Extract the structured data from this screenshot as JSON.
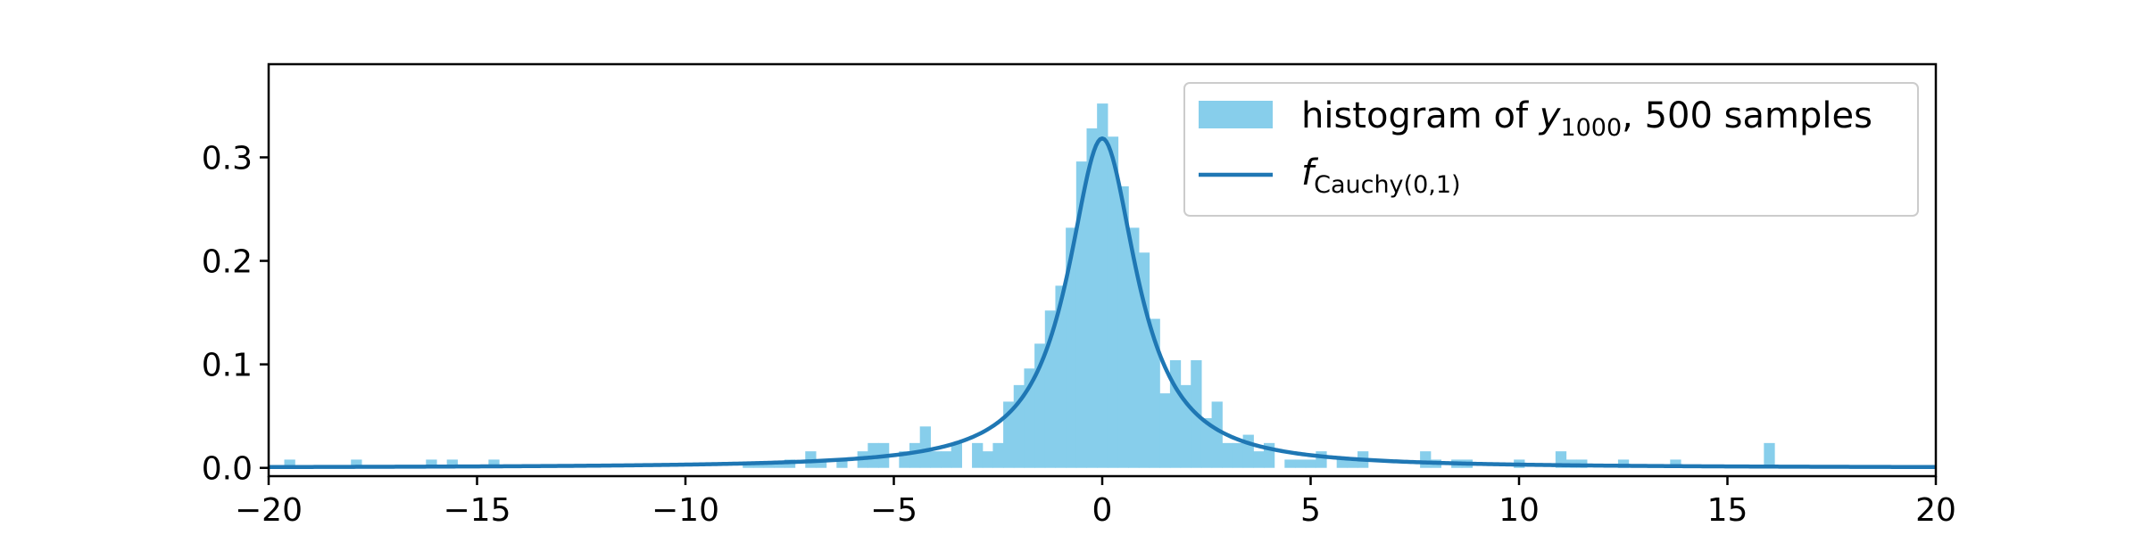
{
  "chart_data": {
    "type": "bar",
    "title": "",
    "xlabel": "",
    "ylabel": "",
    "xlim": [
      -20,
      20
    ],
    "ylim": [
      -0.008,
      0.39
    ],
    "x_ticks": [
      -20,
      -15,
      -10,
      -5,
      0,
      5,
      10,
      15,
      20
    ],
    "x_tick_labels": [
      "−20",
      "−15",
      "−10",
      "−5",
      "0",
      "5",
      "10",
      "15",
      "20"
    ],
    "y_ticks": [
      0.0,
      0.1,
      0.2,
      0.3
    ],
    "y_tick_labels": [
      "0.0",
      "0.1",
      "0.2",
      "0.3"
    ],
    "grid": false,
    "legend_position": "top-right",
    "series": [
      {
        "name": "histogram of y_1000, 500 samples",
        "type": "histogram",
        "color": "#87ceeb",
        "bin_width": 0.25,
        "bins": [
          {
            "x": -19.5,
            "y": 0.008
          },
          {
            "x": -17.9,
            "y": 0.008
          },
          {
            "x": -16.1,
            "y": 0.008
          },
          {
            "x": -15.6,
            "y": 0.008
          },
          {
            "x": -14.6,
            "y": 0.008
          },
          {
            "x": -8.5,
            "y": 0.006
          },
          {
            "x": -8.25,
            "y": 0.006
          },
          {
            "x": -8.0,
            "y": 0.006
          },
          {
            "x": -7.75,
            "y": 0.006
          },
          {
            "x": -7.5,
            "y": 0.008
          },
          {
            "x": -7.0,
            "y": 0.016
          },
          {
            "x": -6.75,
            "y": 0.008
          },
          {
            "x": -6.25,
            "y": 0.008
          },
          {
            "x": -5.75,
            "y": 0.016
          },
          {
            "x": -5.5,
            "y": 0.024
          },
          {
            "x": -5.25,
            "y": 0.024
          },
          {
            "x": -4.75,
            "y": 0.016
          },
          {
            "x": -4.5,
            "y": 0.024
          },
          {
            "x": -4.25,
            "y": 0.04
          },
          {
            "x": -4.0,
            "y": 0.016
          },
          {
            "x": -3.75,
            "y": 0.016
          },
          {
            "x": -3.5,
            "y": 0.024
          },
          {
            "x": -3.0,
            "y": 0.024
          },
          {
            "x": -2.75,
            "y": 0.016
          },
          {
            "x": -2.5,
            "y": 0.024
          },
          {
            "x": -2.25,
            "y": 0.064
          },
          {
            "x": -2.0,
            "y": 0.08
          },
          {
            "x": -1.75,
            "y": 0.096
          },
          {
            "x": -1.5,
            "y": 0.12
          },
          {
            "x": -1.25,
            "y": 0.152
          },
          {
            "x": -1.0,
            "y": 0.176
          },
          {
            "x": -0.75,
            "y": 0.232
          },
          {
            "x": -0.5,
            "y": 0.296
          },
          {
            "x": -0.25,
            "y": 0.328
          },
          {
            "x": 0.0,
            "y": 0.352
          },
          {
            "x": 0.25,
            "y": 0.32
          },
          {
            "x": 0.5,
            "y": 0.272
          },
          {
            "x": 0.75,
            "y": 0.232
          },
          {
            "x": 1.0,
            "y": 0.208
          },
          {
            "x": 1.25,
            "y": 0.144
          },
          {
            "x": 1.5,
            "y": 0.072
          },
          {
            "x": 1.75,
            "y": 0.104
          },
          {
            "x": 2.0,
            "y": 0.08
          },
          {
            "x": 2.25,
            "y": 0.104
          },
          {
            "x": 2.5,
            "y": 0.048
          },
          {
            "x": 2.75,
            "y": 0.064
          },
          {
            "x": 3.0,
            "y": 0.024
          },
          {
            "x": 3.25,
            "y": 0.024
          },
          {
            "x": 3.5,
            "y": 0.032
          },
          {
            "x": 3.75,
            "y": 0.016
          },
          {
            "x": 4.0,
            "y": 0.024
          },
          {
            "x": 4.5,
            "y": 0.008
          },
          {
            "x": 4.75,
            "y": 0.008
          },
          {
            "x": 5.0,
            "y": 0.008
          },
          {
            "x": 5.25,
            "y": 0.016
          },
          {
            "x": 5.75,
            "y": 0.008
          },
          {
            "x": 6.0,
            "y": 0.008
          },
          {
            "x": 6.25,
            "y": 0.016
          },
          {
            "x": 7.75,
            "y": 0.016
          },
          {
            "x": 8.0,
            "y": 0.008
          },
          {
            "x": 8.5,
            "y": 0.008
          },
          {
            "x": 8.75,
            "y": 0.008
          },
          {
            "x": 10.0,
            "y": 0.008
          },
          {
            "x": 11.0,
            "y": 0.016
          },
          {
            "x": 11.25,
            "y": 0.008
          },
          {
            "x": 11.5,
            "y": 0.008
          },
          {
            "x": 12.5,
            "y": 0.008
          },
          {
            "x": 13.75,
            "y": 0.008
          },
          {
            "x": 16.0,
            "y": 0.024
          }
        ]
      },
      {
        "name": "f_Cauchy(0,1)",
        "type": "line",
        "color": "#1f77b4",
        "function": "cauchy_pdf",
        "location": 0,
        "scale": 1
      }
    ],
    "legend": [
      {
        "text": "histogram of ",
        "var": "y",
        "sub": "1000",
        "tail": ", 500 samples"
      },
      {
        "text": "",
        "var": "f",
        "sub": "Cauchy(0,1)",
        "tail": ""
      }
    ]
  }
}
